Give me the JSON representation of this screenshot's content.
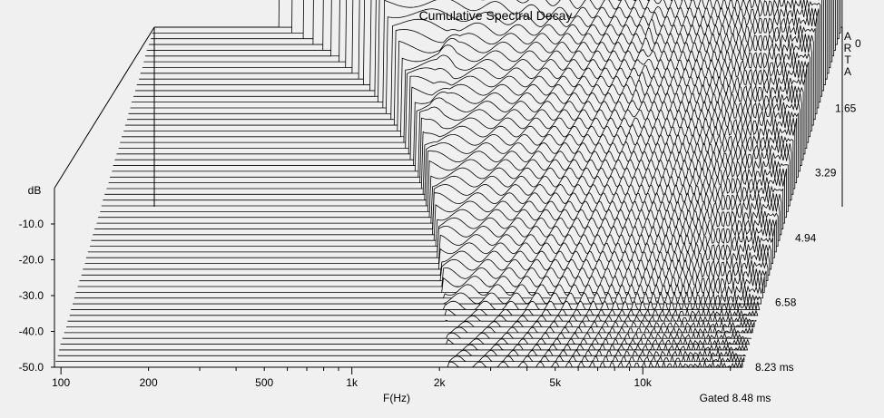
{
  "chart_data": {
    "type": "waterfall",
    "title": "Cumulative Spectral Decay",
    "brand": "ARTA",
    "xlabel": "F(Hz)",
    "ylabel": "dB",
    "zlabel": "",
    "footer": "Gated 8.48 ms",
    "x_scale": "log",
    "xlim": [
      95,
      22000
    ],
    "ylim": [
      -50,
      0
    ],
    "x_ticks": [
      "100",
      "200",
      "500",
      "1k",
      "2k",
      "5k",
      "10k"
    ],
    "x_tick_values": [
      100,
      200,
      500,
      1000,
      2000,
      5000,
      10000
    ],
    "y_ticks": [
      "-10.0",
      "-20.0",
      "-30.0",
      "-40.0",
      "-50.0"
    ],
    "y_tick_values": [
      -10,
      -20,
      -30,
      -40,
      -50
    ],
    "z_ticks": [
      "0",
      "1.65",
      "3.29",
      "4.94",
      "6.58",
      "8.23 ms"
    ],
    "z_tick_values": [
      0,
      1.65,
      3.29,
      4.94,
      6.58,
      8.23
    ],
    "time_unit": "ms",
    "gate_ms": 8.48,
    "slice_count": 60,
    "valid_from_hz": 255,
    "initial_response": {
      "freq_hz": [
        255,
        300,
        400,
        500,
        700,
        1000,
        1500,
        2000,
        3000,
        4000,
        5000,
        6000,
        7000,
        8000,
        9000,
        10000,
        12000,
        14000,
        16000,
        18000,
        20000
      ],
      "db": [
        -1.5,
        -1.0,
        -0.8,
        -0.6,
        -0.3,
        -0.2,
        0,
        0,
        -0.3,
        -0.8,
        -1.5,
        -2.5,
        -3.5,
        -3.8,
        -4.0,
        -4.2,
        -4.5,
        -5.0,
        -5.5,
        -6.2,
        -7.0
      ]
    },
    "resonances": [
      {
        "freq_hz": 1250,
        "db": -10,
        "width_oct": 0.28,
        "persists_ms": 3.0
      },
      {
        "freq_hz": 6000,
        "db": -10,
        "width_oct": 0.14,
        "persists_ms": 5.5
      },
      {
        "freq_hz": 13000,
        "db": -14,
        "width_oct": 0.12,
        "persists_ms": 7.0
      },
      {
        "freq_hz": 17000,
        "db": -12,
        "width_oct": 0.1,
        "persists_ms": 6.5
      }
    ],
    "grid": false,
    "legend": "none"
  }
}
